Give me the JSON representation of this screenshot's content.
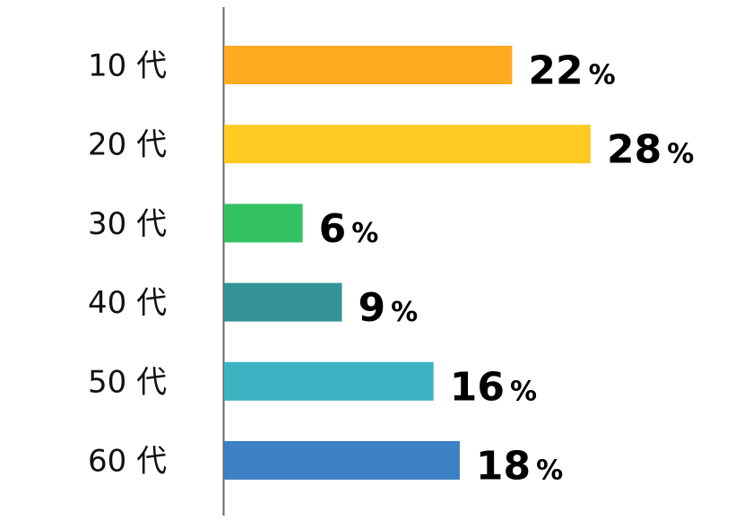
{
  "chart_data": {
    "type": "bar",
    "orientation": "horizontal",
    "categories": [
      "10 代",
      "20 代",
      "30 代",
      "40 代",
      "50 代",
      "60 代"
    ],
    "values": [
      22,
      28,
      6,
      9,
      16,
      18
    ],
    "unit": "%",
    "colors": [
      "#FFAB22",
      "#FFCA22",
      "#33C364",
      "#339397",
      "#3BB3C2",
      "#3D80C4"
    ],
    "xlim": [
      0,
      28
    ],
    "grid": false,
    "legend": "none"
  }
}
